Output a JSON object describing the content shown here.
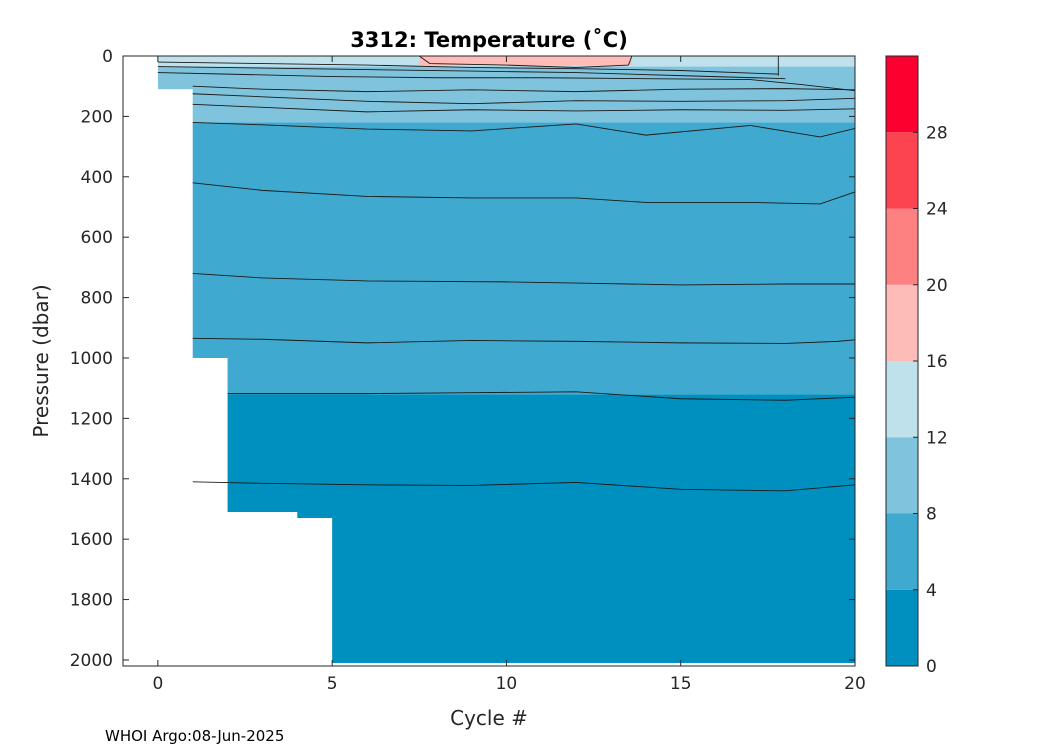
{
  "chart_data": {
    "type": "heatmap",
    "subtype": "filled-contour",
    "title": "3312:  Temperature (˚C)",
    "xlabel": "Cycle #",
    "ylabel": "Pressure (dbar)",
    "footer": "WHOI Argo:08-Jun-2025",
    "xlim": [
      -1,
      20
    ],
    "ylim": [
      0,
      2020
    ],
    "y_reversed": true,
    "xticks": [
      0,
      5,
      10,
      15,
      20
    ],
    "yticks": [
      0,
      200,
      400,
      600,
      800,
      1000,
      1200,
      1400,
      1600,
      1800,
      2000
    ],
    "colorbar": {
      "levels": [
        0,
        4,
        8,
        12,
        16,
        20,
        24,
        28,
        32
      ],
      "ticks": [
        0,
        4,
        8,
        12,
        16,
        20,
        24,
        28
      ],
      "colors": [
        "#0090bf",
        "#40a9cf",
        "#80c3dd",
        "#bfe1ec",
        "#febcb9",
        "#fc8180",
        "#fc4450",
        "#fc0030"
      ]
    },
    "profile_max_depth": [
      {
        "cycle": 0,
        "depth": 110
      },
      {
        "cycle": 1,
        "depth": 1000
      },
      {
        "cycle": 2,
        "depth": 1510
      },
      {
        "cycle": 4,
        "depth": 1530
      },
      {
        "cycle": 5,
        "depth": 2010
      }
    ],
    "band_fill": [
      {
        "value": 2,
        "top": 1120,
        "bottom": 2010
      },
      {
        "value": 6,
        "top": 220,
        "bottom": 1120
      },
      {
        "value": 10,
        "top": 35,
        "bottom": 220
      },
      {
        "value": 14,
        "top": 0,
        "bottom": 35
      },
      {
        "value": 18,
        "top": 0,
        "bottom": 30,
        "x_range": [
          7.5,
          13.6
        ]
      }
    ],
    "contour_lines": [
      {
        "x": [
          1,
          3,
          6,
          9,
          12,
          15,
          18,
          19.5,
          20
        ],
        "y": [
          1410,
          1415,
          1420,
          1422,
          1412,
          1435,
          1440,
          1425,
          1420
        ]
      },
      {
        "x": [
          2,
          4,
          6,
          9,
          12,
          15,
          18,
          20
        ],
        "y": [
          1118,
          1118,
          1118,
          1115,
          1112,
          1135,
          1140,
          1130
        ]
      },
      {
        "x": [
          1,
          3,
          6,
          9,
          12,
          15,
          18,
          19.5,
          20
        ],
        "y": [
          935,
          938,
          950,
          942,
          945,
          950,
          952,
          945,
          940
        ]
      },
      {
        "x": [
          1,
          3,
          6,
          10,
          12,
          15,
          18,
          20
        ],
        "y": [
          720,
          735,
          745,
          748,
          752,
          758,
          755,
          755
        ]
      },
      {
        "x": [
          1,
          3,
          6,
          9,
          12,
          14,
          17,
          19,
          20
        ],
        "y": [
          420,
          445,
          465,
          470,
          470,
          485,
          485,
          490,
          450
        ]
      },
      {
        "x": [
          1,
          3,
          6,
          9,
          12,
          14,
          17,
          19,
          20
        ],
        "y": [
          220,
          228,
          242,
          248,
          225,
          262,
          230,
          268,
          240
        ]
      },
      {
        "x": [
          1,
          3,
          6,
          9,
          12,
          15,
          18,
          20
        ],
        "y": [
          160,
          170,
          185,
          178,
          182,
          178,
          180,
          175
        ]
      },
      {
        "x": [
          1,
          3,
          6,
          9,
          12,
          15,
          18,
          20
        ],
        "y": [
          125,
          135,
          150,
          158,
          148,
          150,
          148,
          140
        ]
      },
      {
        "x": [
          1,
          3,
          6,
          9,
          12,
          15,
          18,
          20
        ],
        "y": [
          100,
          110,
          118,
          112,
          118,
          110,
          108,
          112
        ]
      },
      {
        "x": [
          0,
          2,
          5,
          8,
          11,
          14,
          17,
          18.5,
          20
        ],
        "y": [
          55,
          60,
          68,
          72,
          72,
          75,
          78,
          95,
          115
        ]
      },
      {
        "x": [
          0,
          3,
          6,
          9,
          12,
          15,
          18
        ],
        "y": [
          35,
          40,
          45,
          50,
          55,
          65,
          75
        ]
      },
      {
        "x": [
          0,
          3,
          6,
          9,
          12,
          15,
          17.8
        ],
        "y": [
          20,
          25,
          30,
          38,
          42,
          48,
          60
        ]
      },
      {
        "x": [
          7.5,
          7.8,
          10,
          12,
          13.5,
          13.6
        ],
        "y": [
          0,
          25,
          30,
          38,
          30,
          0
        ]
      },
      {
        "x": [
          17.8,
          17.8
        ],
        "y": [
          0,
          65
        ]
      }
    ]
  }
}
